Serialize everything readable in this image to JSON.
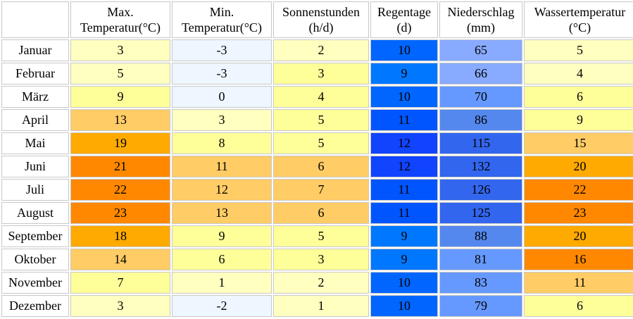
{
  "columns": [
    {
      "line1": "Max.",
      "line2": "Temperatur(°C)"
    },
    {
      "line1": "Min.",
      "line2": "Temperatur(°C)"
    },
    {
      "line1": "Sonnenstunden",
      "line2": "(h/d)"
    },
    {
      "line1": "Regentage",
      "line2": "(d)"
    },
    {
      "line1": "Niederschlag",
      "line2": "(mm)"
    },
    {
      "line1": "Wassertemperatur",
      "line2": "(°C)"
    }
  ],
  "rows": [
    {
      "month": "Januar",
      "max": "3",
      "min": "-3",
      "sun": "2",
      "raindays": "10",
      "precip": "65",
      "water": "5"
    },
    {
      "month": "Februar",
      "max": "5",
      "min": "-3",
      "sun": "3",
      "raindays": "9",
      "precip": "66",
      "water": "4"
    },
    {
      "month": "März",
      "max": "9",
      "min": "0",
      "sun": "4",
      "raindays": "10",
      "precip": "70",
      "water": "6"
    },
    {
      "month": "April",
      "max": "13",
      "min": "3",
      "sun": "5",
      "raindays": "11",
      "precip": "86",
      "water": "9"
    },
    {
      "month": "Mai",
      "max": "19",
      "min": "8",
      "sun": "5",
      "raindays": "12",
      "precip": "115",
      "water": "15"
    },
    {
      "month": "Juni",
      "max": "21",
      "min": "11",
      "sun": "6",
      "raindays": "12",
      "precip": "132",
      "water": "20"
    },
    {
      "month": "Juli",
      "max": "22",
      "min": "12",
      "sun": "7",
      "raindays": "11",
      "precip": "126",
      "water": "22"
    },
    {
      "month": "August",
      "max": "23",
      "min": "13",
      "sun": "6",
      "raindays": "11",
      "precip": "125",
      "water": "23"
    },
    {
      "month": "September",
      "max": "18",
      "min": "9",
      "sun": "5",
      "raindays": "9",
      "precip": "88",
      "water": "20"
    },
    {
      "month": "Oktober",
      "max": "14",
      "min": "6",
      "sun": "3",
      "raindays": "9",
      "precip": "81",
      "water": "16"
    },
    {
      "month": "November",
      "max": "7",
      "min": "1",
      "sun": "2",
      "raindays": "10",
      "precip": "83",
      "water": "11"
    },
    {
      "month": "Dezember",
      "max": "3",
      "min": "-2",
      "sun": "1",
      "raindays": "10",
      "precip": "79",
      "water": "6"
    }
  ],
  "colors": {
    "max": [
      "#ffffc0",
      "#ffffc0",
      "#ffff99",
      "#ffcc66",
      "#ffaa00",
      "#ff8800",
      "#ff8800",
      "#ff8800",
      "#ffaa00",
      "#ffcc66",
      "#ffff99",
      "#ffffc0"
    ],
    "min": [
      "#eef6ff",
      "#eef6ff",
      "#eef6ff",
      "#ffffc0",
      "#ffff99",
      "#ffcc66",
      "#ffcc66",
      "#ffcc66",
      "#ffff99",
      "#ffff99",
      "#ffffc0",
      "#eef6ff"
    ],
    "sun": [
      "#ffffc0",
      "#ffff99",
      "#ffff99",
      "#ffff99",
      "#ffff99",
      "#ffcc66",
      "#ffcc66",
      "#ffcc66",
      "#ffff99",
      "#ffff99",
      "#ffffc0",
      "#ffffc0"
    ],
    "raindays": [
      "#0066ff",
      "#0077ff",
      "#0066ff",
      "#0055ff",
      "#1144ff",
      "#1144ff",
      "#0055ff",
      "#0055ff",
      "#0077ff",
      "#0077ff",
      "#0066ff",
      "#0066ff"
    ],
    "precip": [
      "#88aaff",
      "#88aaff",
      "#6699ff",
      "#5588ee",
      "#3366ee",
      "#3366ee",
      "#3366ee",
      "#3366ee",
      "#5588ee",
      "#6699ff",
      "#6699ff",
      "#6699ff"
    ],
    "water": [
      "#ffffc0",
      "#ffffc0",
      "#ffff99",
      "#ffff99",
      "#ffcc66",
      "#ffaa00",
      "#ff8800",
      "#ff8800",
      "#ffaa00",
      "#ff8800",
      "#ffcc66",
      "#ffff99"
    ]
  }
}
